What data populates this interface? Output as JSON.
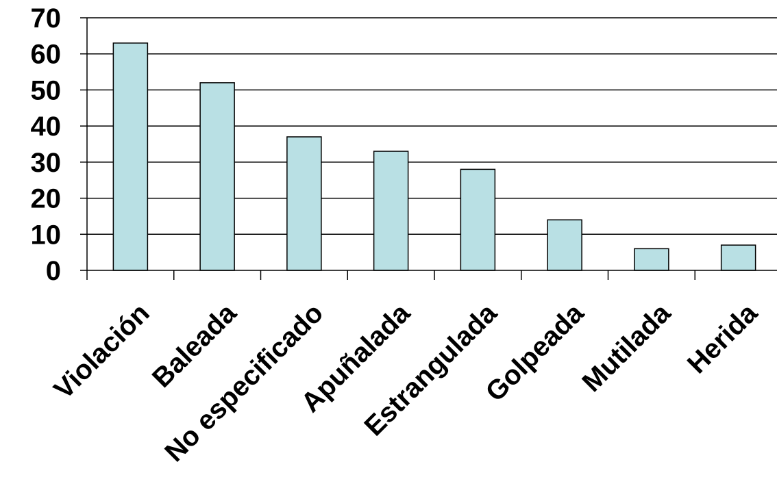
{
  "chart_data": {
    "type": "bar",
    "categories": [
      "Violación",
      "Baleada",
      "No especificado",
      "Apuñalada",
      "Estrangulada",
      "Golpeada",
      "Mutilada",
      "Herida"
    ],
    "values": [
      63,
      52,
      37,
      33,
      28,
      14,
      6,
      7
    ],
    "title": "",
    "xlabel": "",
    "ylabel": "",
    "ylim": [
      0,
      70
    ],
    "yticks": [
      0,
      10,
      20,
      30,
      40,
      50,
      60,
      70
    ],
    "grid": true,
    "legend": "none",
    "colors": {
      "bar_fill": "#b9e0e4",
      "bar_stroke": "#000000",
      "grid": "#000000",
      "axis": "#000000"
    }
  }
}
